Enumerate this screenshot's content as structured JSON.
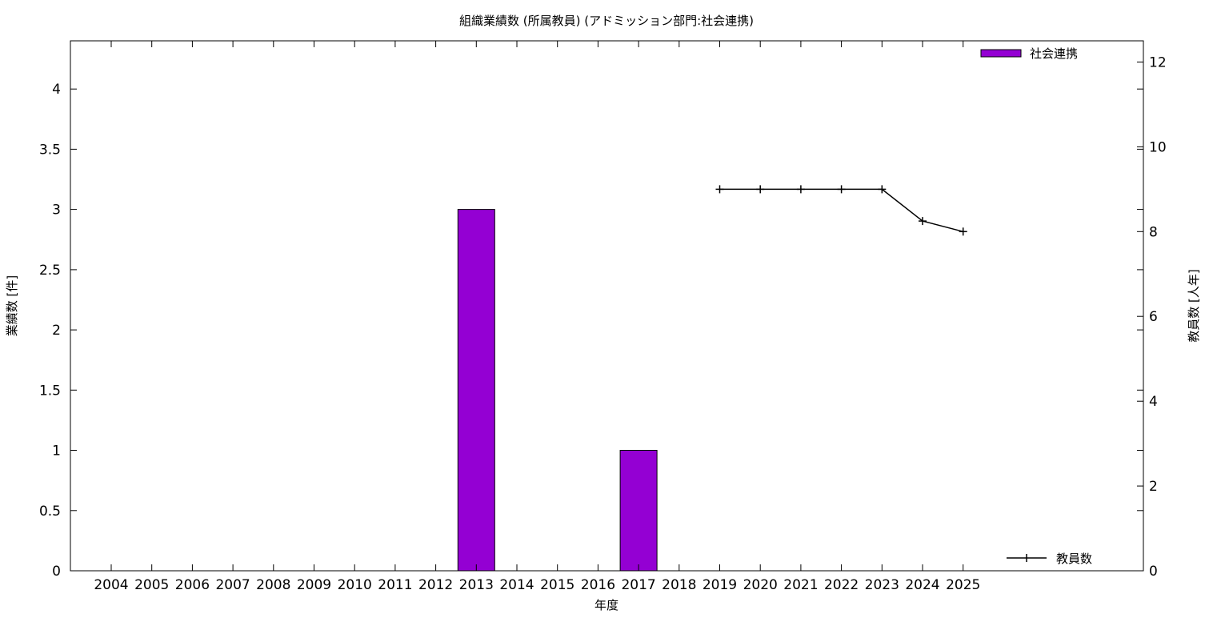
{
  "chart_data": {
    "type": "bar",
    "title": "組織業績数 (所属教員) (アドミッション部門:社会連携)",
    "xlabel": "年度",
    "ylabel": "業績数 [件]",
    "y2label": "教員数 [人年]",
    "categories": [
      "2004",
      "2005",
      "2006",
      "2007",
      "2008",
      "2009",
      "2010",
      "2011",
      "2012",
      "2013",
      "2014",
      "2015",
      "2016",
      "2017",
      "2018",
      "2019",
      "2020",
      "2021",
      "2022",
      "2023",
      "2024",
      "2025"
    ],
    "ylim": [
      0,
      4.4
    ],
    "y2lim": [
      0,
      12.5
    ],
    "yticks": [
      "0",
      "0.5",
      "1",
      "1.5",
      "2",
      "2.5",
      "3",
      "3.5",
      "4"
    ],
    "y2ticks": [
      "0",
      "2",
      "4",
      "6",
      "8",
      "10",
      "12"
    ],
    "series": [
      {
        "name": "社会連携",
        "type": "bar",
        "axis": "left",
        "color": "#9400D3",
        "values": [
          0,
          0,
          0,
          0,
          0,
          0,
          0,
          0,
          0,
          3,
          0,
          0,
          0,
          1,
          0,
          0,
          0,
          0,
          0,
          0,
          0,
          0
        ]
      },
      {
        "name": "教員数",
        "type": "line",
        "axis": "right",
        "color": "#000000",
        "points": [
          {
            "x": "2019",
            "y": 9
          },
          {
            "x": "2020",
            "y": 9
          },
          {
            "x": "2021",
            "y": 9
          },
          {
            "x": "2022",
            "y": 9
          },
          {
            "x": "2023",
            "y": 9
          },
          {
            "x": "2024",
            "y": 8.25
          },
          {
            "x": "2025",
            "y": 8
          }
        ]
      }
    ],
    "legend": [
      {
        "label": "社会連携",
        "position": "top-right"
      },
      {
        "label": "教員数",
        "position": "bottom-right"
      }
    ],
    "grid": false
  }
}
